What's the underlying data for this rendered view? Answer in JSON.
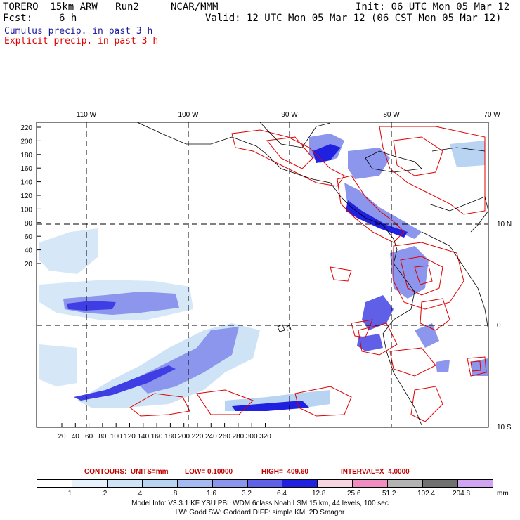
{
  "header": {
    "model": "TORERO  15km ARW   Run2",
    "org": "NCAR/MMM",
    "init": "Init: 06 UTC Mon 05 Mar 12",
    "fcst_label": "Fcst:",
    "fcst_value": "6 h",
    "valid": "Valid: 12 UTC Mon 05 Mar 12 (06 CST Mon 05 Mar 12)"
  },
  "legend": {
    "cumulus": "Cumulus precip. in past 3 h",
    "explicit": "Explicit precip. in past 3 h",
    "cumulus_color": "#1a1a9c",
    "explicit_color": "#e00000"
  },
  "map": {
    "lon_labels": [
      "110 W",
      "100 W",
      "90 W",
      "80 W",
      "70 W"
    ],
    "lat_labels": [
      "10 N",
      "0",
      "10 S"
    ],
    "y_ticks": [
      "220",
      "200",
      "180",
      "160",
      "140",
      "120",
      "100",
      "80",
      "60",
      "40",
      "20"
    ],
    "x_ticks": [
      "20",
      "40",
      "60",
      "80",
      "100",
      "120",
      "140",
      "160",
      "180",
      "200",
      "220",
      "240",
      "260",
      "280",
      "300",
      "320"
    ]
  },
  "contours": {
    "units": "CONTOURS:  UNITS=mm",
    "low": "LOW= 0.10000",
    "high": "HIGH=  409.60",
    "interval": "INTERVAL=X  4.0000"
  },
  "colorbar": {
    "labels": [
      ".1",
      ".2",
      ".4",
      ".8",
      "1.6",
      "3.2",
      "6.4",
      "12.8",
      "25.6",
      "51.2",
      "102.4",
      "204.8"
    ],
    "unit": "mm",
    "colors": [
      "#ffffff",
      "#e6f2fb",
      "#cfe3f7",
      "#b9d4f3",
      "#a5baf0",
      "#8a96ec",
      "#5f5fe8",
      "#2020e0",
      "#f7d5e0",
      "#f08cc0",
      "#b3b3b3",
      "#707070",
      "#d0a4f0"
    ]
  },
  "model_info": {
    "line1": "Model Info: V3.3.1    KF     YSU PBL   WDM 6class  Noah LSM  15 km,    44 levels,   100 sec",
    "line2": "LW: Godd SW: Goddard DIFF: simple KM: 2D Smagor"
  }
}
